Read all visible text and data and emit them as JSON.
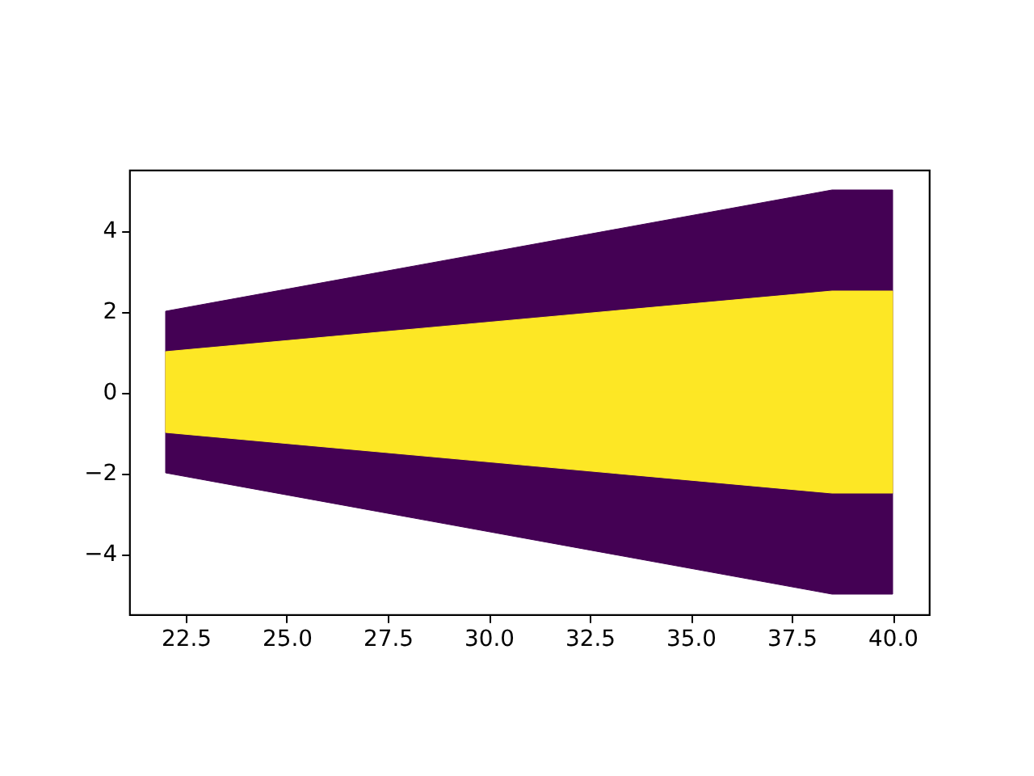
{
  "chart_data": {
    "type": "area",
    "x": [
      22,
      38.5,
      40
    ],
    "series": [
      {
        "color": "#440154",
        "values": [
          2,
          5,
          5
        ]
      },
      {
        "color": "#440154",
        "values": [
          -2,
          -5,
          -5
        ]
      },
      {
        "color": "#fde725",
        "values": [
          1,
          2.5,
          2.5
        ]
      },
      {
        "color": "#fde725",
        "values": [
          -1,
          -2.5,
          -2.5
        ]
      }
    ],
    "xlim": [
      21.1,
      40.9
    ],
    "xticks": [
      {
        "value": 22.5,
        "label": "22.5"
      },
      {
        "value": 25,
        "label": "25.0"
      },
      {
        "value": 27.5,
        "label": "27.5"
      },
      {
        "value": 30,
        "label": "30.0"
      },
      {
        "value": 32.5,
        "label": "32.5"
      },
      {
        "value": 35,
        "label": "35.0"
      },
      {
        "value": 37.5,
        "label": "37.5"
      },
      {
        "value": 40,
        "label": "40.0"
      }
    ],
    "ylim": [
      -5.5,
      5.5
    ],
    "yticks": [
      -4,
      -2,
      0,
      2,
      4
    ]
  }
}
